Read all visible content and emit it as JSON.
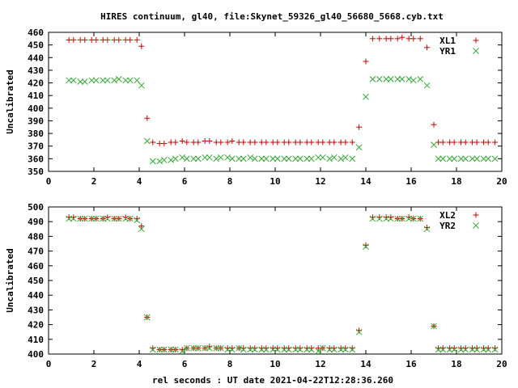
{
  "chart_data": {
    "title": "HIRES continuum, gl40, file:Skynet_59326_gl40_56680_5668.cyb.txt",
    "xlabel": "rel seconds : UT date 2021-04-22T12:28:36.260",
    "panels": [
      {
        "type": "scatter",
        "ylabel": "Uncalibrated",
        "xlim": [
          0,
          20
        ],
        "ylim": [
          350,
          460
        ],
        "x_ticks": [
          0,
          2,
          4,
          6,
          8,
          10,
          12,
          14,
          16,
          18,
          20
        ],
        "y_ticks": [
          350,
          360,
          370,
          380,
          390,
          400,
          410,
          420,
          430,
          440,
          450,
          460
        ],
        "legend_position": "top-right",
        "series": [
          {
            "name": "XL1",
            "marker": "plus",
            "color": "#cc0000",
            "x": [
              0.9,
              1.1,
              1.4,
              1.6,
              1.9,
              2.1,
              2.4,
              2.6,
              2.9,
              3.1,
              3.4,
              3.6,
              3.9,
              4.1,
              4.35,
              4.6,
              4.9,
              5.1,
              5.4,
              5.6,
              5.9,
              6.1,
              6.4,
              6.6,
              6.9,
              7.1,
              7.4,
              7.6,
              7.9,
              8.1,
              8.4,
              8.6,
              8.9,
              9.1,
              9.4,
              9.6,
              9.9,
              10.1,
              10.4,
              10.6,
              10.9,
              11.1,
              11.4,
              11.6,
              11.9,
              12.1,
              12.4,
              12.6,
              12.9,
              13.1,
              13.4,
              13.7,
              14.0,
              14.3,
              14.6,
              14.9,
              15.1,
              15.4,
              15.6,
              15.9,
              16.1,
              16.4,
              16.7,
              17.0,
              17.2,
              17.4,
              17.7,
              17.9,
              18.2,
              18.4,
              18.7,
              18.9,
              19.2,
              19.4,
              19.7
            ],
            "y": [
              454,
              454,
              454,
              454,
              454,
              454,
              454,
              454,
              454,
              454,
              454,
              454,
              454,
              449,
              392,
              373,
              372,
              372,
              373,
              373,
              374,
              373,
              373,
              373,
              374,
              374,
              373,
              373,
              373,
              374,
              373,
              373,
              373,
              373,
              373,
              373,
              373,
              373,
              373,
              373,
              373,
              373,
              373,
              373,
              373,
              373,
              373,
              373,
              373,
              373,
              373,
              385,
              437,
              455,
              455,
              455,
              455,
              455,
              456,
              455,
              455,
              455,
              448,
              387,
              373,
              373,
              373,
              373,
              373,
              373,
              373,
              373,
              373,
              373,
              373
            ]
          },
          {
            "name": "YR1",
            "marker": "x",
            "color": "#33aa33",
            "x": [
              0.9,
              1.1,
              1.4,
              1.6,
              1.9,
              2.1,
              2.4,
              2.6,
              2.9,
              3.1,
              3.4,
              3.6,
              3.9,
              4.1,
              4.35,
              4.6,
              4.9,
              5.1,
              5.4,
              5.6,
              5.9,
              6.1,
              6.4,
              6.6,
              6.9,
              7.1,
              7.4,
              7.6,
              7.9,
              8.1,
              8.4,
              8.6,
              8.9,
              9.1,
              9.4,
              9.6,
              9.9,
              10.1,
              10.4,
              10.6,
              10.9,
              11.1,
              11.4,
              11.6,
              11.9,
              12.1,
              12.4,
              12.6,
              12.9,
              13.1,
              13.4,
              13.7,
              14.0,
              14.3,
              14.6,
              14.9,
              15.1,
              15.4,
              15.6,
              15.9,
              16.1,
              16.4,
              16.7,
              17.0,
              17.2,
              17.4,
              17.7,
              17.9,
              18.2,
              18.4,
              18.7,
              18.9,
              19.2,
              19.4,
              19.7
            ],
            "y": [
              422,
              422,
              421,
              421,
              422,
              422,
              422,
              422,
              422,
              423,
              422,
              422,
              422,
              418,
              374,
              358,
              358,
              359,
              359,
              360,
              361,
              360,
              360,
              360,
              361,
              361,
              360,
              361,
              361,
              360,
              360,
              360,
              361,
              360,
              360,
              360,
              360,
              360,
              360,
              360,
              360,
              360,
              360,
              360,
              361,
              361,
              360,
              361,
              360,
              361,
              360,
              369,
              409,
              423,
              423,
              423,
              423,
              423,
              423,
              423,
              422,
              423,
              418,
              371,
              360,
              360,
              360,
              360,
              360,
              360,
              360,
              360,
              360,
              360,
              360
            ]
          }
        ]
      },
      {
        "type": "scatter",
        "ylabel": "Uncalibrated",
        "xlim": [
          0,
          20
        ],
        "ylim": [
          400,
          500
        ],
        "x_ticks": [
          0,
          2,
          4,
          6,
          8,
          10,
          12,
          14,
          16,
          18,
          20
        ],
        "y_ticks": [
          400,
          410,
          420,
          430,
          440,
          450,
          460,
          470,
          480,
          490,
          500
        ],
        "legend_position": "top-right",
        "series": [
          {
            "name": "XL2",
            "marker": "plus",
            "color": "#cc0000",
            "x": [
              0.9,
              1.1,
              1.4,
              1.6,
              1.9,
              2.1,
              2.4,
              2.6,
              2.9,
              3.1,
              3.4,
              3.6,
              3.9,
              4.1,
              4.35,
              4.6,
              4.9,
              5.1,
              5.4,
              5.6,
              5.9,
              6.1,
              6.4,
              6.6,
              6.9,
              7.1,
              7.4,
              7.6,
              7.9,
              8.1,
              8.4,
              8.6,
              8.9,
              9.1,
              9.4,
              9.6,
              9.9,
              10.1,
              10.4,
              10.6,
              10.9,
              11.1,
              11.4,
              11.6,
              11.9,
              12.1,
              12.4,
              12.6,
              12.9,
              13.1,
              13.4,
              13.7,
              14.0,
              14.3,
              14.6,
              14.9,
              15.1,
              15.4,
              15.6,
              15.9,
              16.1,
              16.4,
              16.7,
              17.0,
              17.2,
              17.4,
              17.7,
              17.9,
              18.2,
              18.4,
              18.7,
              18.9,
              19.2,
              19.4,
              19.7
            ],
            "y": [
              493,
              493,
              492,
              492,
              492,
              492,
              492,
              493,
              492,
              492,
              493,
              492,
              492,
              487,
              425,
              404,
              403,
              403,
              403,
              403,
              403,
              404,
              404,
              404,
              404,
              405,
              404,
              404,
              404,
              404,
              404,
              404,
              404,
              404,
              404,
              404,
              404,
              404,
              404,
              404,
              404,
              404,
              404,
              404,
              404,
              404,
              404,
              404,
              404,
              404,
              404,
              416,
              474,
              493,
              493,
              493,
              493,
              492,
              492,
              493,
              492,
              492,
              486,
              419,
              404,
              404,
              404,
              404,
              404,
              404,
              404,
              404,
              404,
              404,
              404
            ]
          },
          {
            "name": "YR2",
            "marker": "x",
            "color": "#33aa33",
            "x": [
              0.9,
              1.1,
              1.4,
              1.6,
              1.9,
              2.1,
              2.4,
              2.6,
              2.9,
              3.1,
              3.4,
              3.6,
              3.9,
              4.1,
              4.35,
              4.6,
              4.9,
              5.1,
              5.4,
              5.6,
              5.9,
              6.1,
              6.4,
              6.6,
              6.9,
              7.1,
              7.4,
              7.6,
              7.9,
              8.1,
              8.4,
              8.6,
              8.9,
              9.1,
              9.4,
              9.6,
              9.9,
              10.1,
              10.4,
              10.6,
              10.9,
              11.1,
              11.4,
              11.6,
              11.9,
              12.1,
              12.4,
              12.6,
              12.9,
              13.1,
              13.4,
              13.7,
              14.0,
              14.3,
              14.6,
              14.9,
              15.1,
              15.4,
              15.6,
              15.9,
              16.1,
              16.4,
              16.7,
              17.0,
              17.2,
              17.4,
              17.7,
              17.9,
              18.2,
              18.4,
              18.7,
              18.9,
              19.2,
              19.4,
              19.7
            ],
            "y": [
              492,
              492,
              492,
              492,
              492,
              492,
              492,
              492,
              492,
              492,
              492,
              492,
              491,
              485,
              425,
              403,
              403,
              403,
              403,
              403,
              402,
              404,
              404,
              404,
              404,
              404,
              404,
              404,
              403,
              403,
              404,
              403,
              403,
              403,
              403,
              403,
              403,
              403,
              403,
              403,
              403,
              403,
              403,
              403,
              402,
              404,
              403,
              403,
              403,
              403,
              403,
              415,
              473,
              492,
              492,
              492,
              492,
              492,
              492,
              492,
              492,
              492,
              485,
              419,
              403,
              403,
              403,
              403,
              403,
              403,
              403,
              403,
              403,
              403,
              403
            ]
          }
        ]
      }
    ]
  }
}
